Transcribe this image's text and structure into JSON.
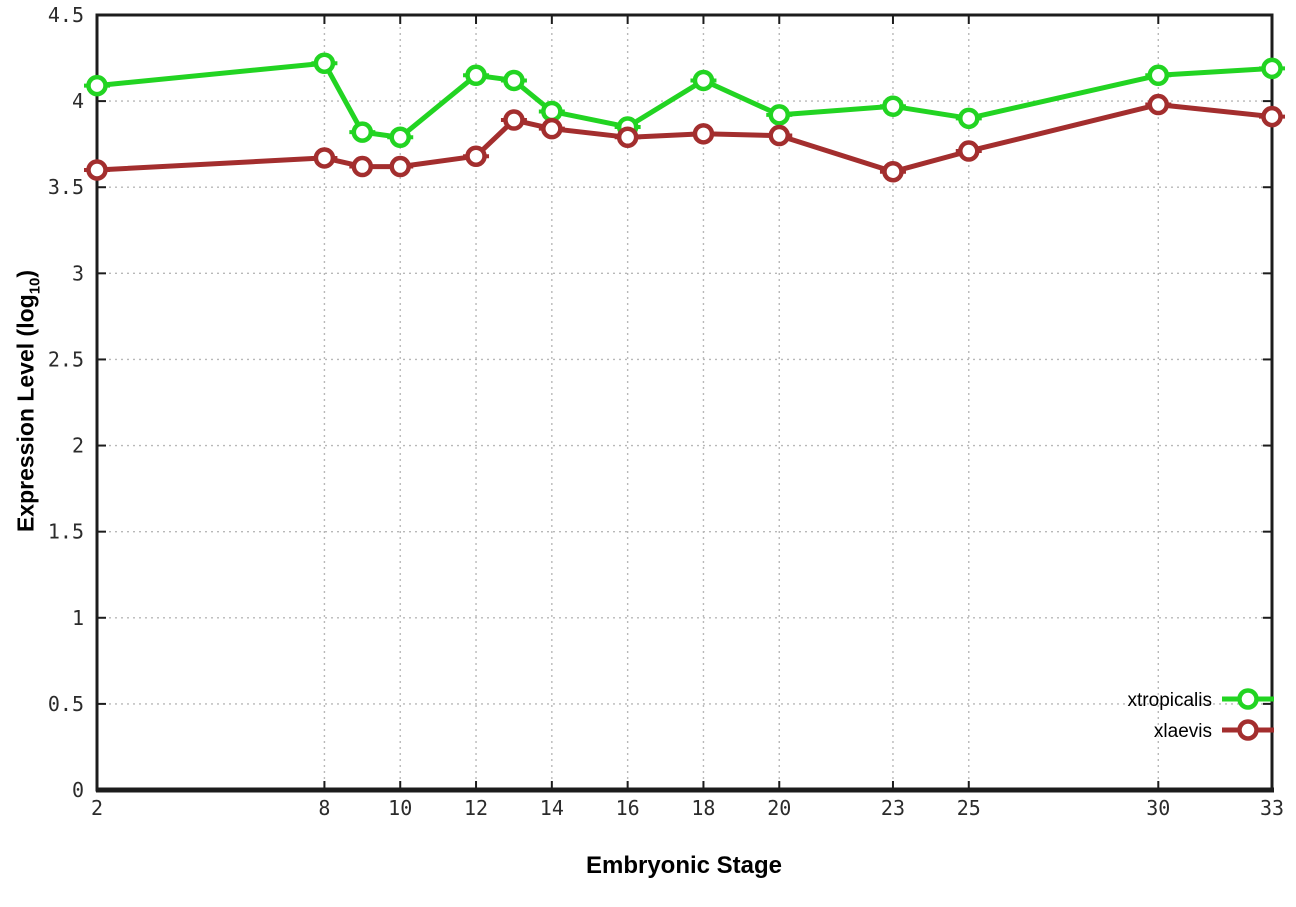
{
  "chart_data": {
    "type": "line",
    "title": "",
    "xlabel": "Embryonic Stage",
    "ylabel": "Expression Level (log10)",
    "ylabel_parts": {
      "main": "Expression Level (log",
      "sub": "10",
      "end": ")"
    },
    "x": [
      2,
      8,
      9,
      10,
      12,
      13,
      14,
      16,
      18,
      20,
      23,
      25,
      30,
      33
    ],
    "x_ticks": [
      2,
      8,
      10,
      12,
      14,
      16,
      18,
      20,
      23,
      25,
      30,
      33
    ],
    "y_ticks": [
      0,
      0.5,
      1,
      1.5,
      2,
      2.5,
      3,
      3.5,
      4,
      4.5
    ],
    "xlim": [
      2,
      33
    ],
    "ylim": [
      0,
      4.5
    ],
    "grid": true,
    "legend_position": "inside-bottom-right",
    "marker_style": "open-circle-with-horizontal-bar",
    "series": [
      {
        "name": "xtropicalis",
        "color": "#22d422",
        "values": [
          4.09,
          4.22,
          3.82,
          3.79,
          4.15,
          4.12,
          3.94,
          3.85,
          4.12,
          3.92,
          3.97,
          3.9,
          4.15,
          4.19
        ]
      },
      {
        "name": "xlaevis",
        "color": "#a32e2e",
        "values": [
          3.6,
          3.67,
          3.62,
          3.62,
          3.68,
          3.89,
          3.84,
          3.79,
          3.81,
          3.8,
          3.59,
          3.71,
          3.98,
          3.91
        ]
      }
    ],
    "colors": {
      "grid": "#b8b8b8",
      "axis": "#1c1c1c",
      "tick_label": "#2b2b2b",
      "background": "#ffffff"
    }
  }
}
